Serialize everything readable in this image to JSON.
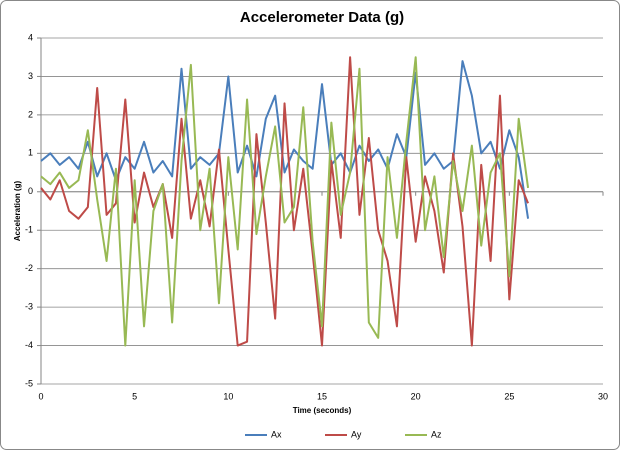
{
  "chart_data": {
    "type": "line",
    "title": "Accelerometer Data (g)",
    "x_label": "Time (seconds)",
    "y_label": "Acceleration (g)",
    "x": [
      0,
      0.5,
      1,
      1.5,
      2,
      2.5,
      3,
      3.5,
      4,
      4.5,
      5,
      5.5,
      6,
      6.5,
      7,
      7.5,
      8,
      8.5,
      9,
      9.5,
      10,
      10.5,
      11,
      11.5,
      12,
      12.5,
      13,
      13.5,
      14,
      14.5,
      15,
      15.5,
      16,
      16.5,
      17,
      17.5,
      18,
      18.5,
      19,
      19.5,
      20,
      20.5,
      21,
      21.5,
      22,
      22.5,
      23,
      23.5,
      24,
      24.5,
      25,
      25.5,
      26
    ],
    "series": [
      {
        "name": "Ax",
        "color": "#4a7ebb",
        "values": [
          0.8,
          1.0,
          0.7,
          0.9,
          0.6,
          1.3,
          0.4,
          1.0,
          0.3,
          0.9,
          0.6,
          1.3,
          0.5,
          0.8,
          0.4,
          3.2,
          0.6,
          0.9,
          0.7,
          1.0,
          3.0,
          0.5,
          1.2,
          0.4,
          1.9,
          2.5,
          0.5,
          1.1,
          0.8,
          0.6,
          2.8,
          0.7,
          1.0,
          0.5,
          1.2,
          0.8,
          1.1,
          0.6,
          1.5,
          0.9,
          3.1,
          0.7,
          1.0,
          0.6,
          0.8,
          3.4,
          2.5,
          1.0,
          1.3,
          0.6,
          1.6,
          0.9,
          -0.7
        ]
      },
      {
        "name": "Ay",
        "color": "#be4b48",
        "values": [
          0.1,
          -0.2,
          0.3,
          -0.5,
          -0.7,
          -0.4,
          2.7,
          -0.6,
          -0.3,
          2.4,
          -0.8,
          0.5,
          -0.4,
          0.2,
          -1.2,
          1.9,
          -0.7,
          0.3,
          -0.9,
          1.1,
          -1.5,
          -4.0,
          -3.9,
          1.5,
          -0.8,
          -3.3,
          2.3,
          -1.0,
          0.6,
          -1.6,
          -4.0,
          0.8,
          -1.2,
          3.5,
          -0.6,
          1.4,
          -1.0,
          -1.8,
          -3.5,
          0.9,
          -1.3,
          0.4,
          -0.5,
          -2.1,
          1.0,
          -0.9,
          -4.0,
          0.7,
          -1.8,
          2.5,
          -2.8,
          0.3,
          -0.3
        ]
      },
      {
        "name": "Az",
        "color": "#98b954",
        "values": [
          0.4,
          0.2,
          0.5,
          0.1,
          0.3,
          1.6,
          -0.2,
          -1.8,
          0.6,
          -4.0,
          0.3,
          -3.5,
          -0.5,
          0.2,
          -3.4,
          0.8,
          3.3,
          -1.0,
          0.6,
          -2.9,
          0.9,
          -1.5,
          2.4,
          -1.1,
          0.4,
          1.7,
          -0.8,
          -0.4,
          2.2,
          -1.3,
          -3.5,
          1.8,
          -0.6,
          0.5,
          3.2,
          -3.4,
          -3.8,
          0.9,
          -1.2,
          1.3,
          3.5,
          -1.0,
          0.4,
          -1.7,
          0.8,
          -0.5,
          1.2,
          -1.4,
          0.5,
          1.0,
          -2.2,
          1.9,
          0.1
        ]
      }
    ],
    "xlim": [
      0,
      30
    ],
    "xticks": [
      0,
      5,
      10,
      15,
      20,
      25,
      30
    ],
    "ylim": [
      -5,
      4
    ],
    "yticks": [
      -5,
      -4,
      -3,
      -2,
      -1,
      0,
      1,
      2,
      3,
      4
    ],
    "grid": true,
    "legend": "bottom"
  }
}
